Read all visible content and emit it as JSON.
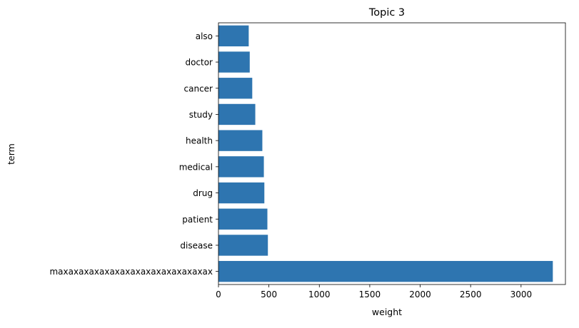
{
  "chart_data": {
    "type": "bar",
    "orientation": "horizontal",
    "title": "Topic 3",
    "xlabel": "weight",
    "ylabel": "term",
    "categories": [
      "also",
      "doctor",
      "cancer",
      "study",
      "health",
      "medical",
      "drug",
      "patient",
      "disease",
      "maxaxaxaxaxaxaxaxaxaxaxaxaxaxax"
    ],
    "values": [
      300,
      310,
      335,
      365,
      435,
      450,
      455,
      485,
      490,
      3315
    ],
    "xlim": [
      0,
      3440
    ],
    "xticks": [
      0,
      500,
      1000,
      1500,
      2000,
      2500,
      3000
    ],
    "grid": false,
    "bar_color": "#2e75b0"
  }
}
